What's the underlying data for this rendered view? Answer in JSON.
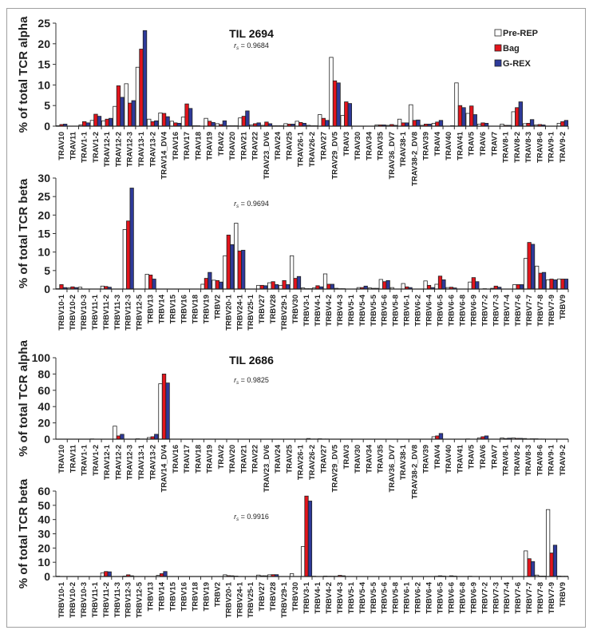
{
  "legend": [
    {
      "name": "Pre-REP",
      "color": "#ffffff"
    },
    {
      "name": "Bag",
      "color": "#e3141c"
    },
    {
      "name": "G-REX",
      "color": "#2e3a9a"
    }
  ],
  "chart_data": [
    {
      "type": "bar",
      "panel": "TIL 2694 alpha",
      "title": "TIL 2694",
      "annotation": "r_s = 0.9684",
      "ylabel": "% of total TCR alpha",
      "ylim": [
        0,
        25
      ],
      "yticks": [
        0,
        5,
        10,
        15,
        20,
        25
      ],
      "legend_position": "top-right",
      "categories": [
        "TRAV10",
        "TRAV11",
        "TRAV1-1",
        "TRAV1-2",
        "TRAV12-1",
        "TRAV12-2",
        "TRAV12-3",
        "TRAV13-1",
        "TRAV13-2",
        "TRAV14_DV4",
        "TRAV16",
        "TRAV17",
        "TRAV18",
        "TRAV19",
        "TRAV2",
        "TRAV20",
        "TRAV21",
        "TRAV22",
        "TRAV23_DV6",
        "TRAV24",
        "TRAV25",
        "TRAV26-1",
        "TRAV26-2",
        "TRAV27",
        "TRAV29_DV5",
        "TRAV3",
        "TRAV30",
        "TRAV34",
        "TRAV35",
        "TRAV36_DV7",
        "TRAV38-1",
        "TRAV38-2_DV8",
        "TRAV39",
        "TRAV4",
        "TRAV40",
        "TRAV41",
        "TRAV5",
        "TRAV6",
        "TRAV7",
        "TRAV8-1",
        "TRAV8-2",
        "TRAV8-3",
        "TRAV8-6",
        "TRAV9-1",
        "TRAV9-2"
      ],
      "series": [
        {
          "name": "Pre-REP",
          "values": [
            0.1,
            0.0,
            0.3,
            1.4,
            1.3,
            4.8,
            10.3,
            14.3,
            1.7,
            3.2,
            1.2,
            2.2,
            0.1,
            1.9,
            0.6,
            0.1,
            2.0,
            0.3,
            0.2,
            0.1,
            0.6,
            1.2,
            0.2,
            2.8,
            16.7,
            2.6,
            0.0,
            0.0,
            0.3,
            0.2,
            1.7,
            5.2,
            0.2,
            0.7,
            0.0,
            10.5,
            3.1,
            0.5,
            0.0,
            0.5,
            3.5,
            0.6,
            0.3,
            0.0,
            0.7
          ]
        },
        {
          "name": "Bag",
          "values": [
            0.4,
            0.0,
            1.1,
            2.9,
            1.7,
            9.8,
            5.6,
            18.7,
            1.1,
            3.1,
            0.8,
            5.4,
            0.1,
            1.2,
            0.4,
            0.1,
            2.4,
            0.6,
            1.0,
            0.1,
            0.5,
            0.9,
            0.1,
            1.9,
            11.0,
            5.9,
            0.0,
            0.0,
            0.3,
            0.4,
            0.8,
            1.4,
            0.5,
            1.0,
            0.0,
            5.0,
            4.9,
            0.8,
            0.0,
            0.2,
            4.5,
            0.7,
            0.4,
            0.0,
            1.1
          ]
        },
        {
          "name": "G-REX",
          "values": [
            0.5,
            0.0,
            0.8,
            2.4,
            1.9,
            7.0,
            6.2,
            23.2,
            1.3,
            2.3,
            0.7,
            4.3,
            0.0,
            0.9,
            1.3,
            0.1,
            3.7,
            0.8,
            0.6,
            0.1,
            0.5,
            0.7,
            0.1,
            1.4,
            10.5,
            5.5,
            0.0,
            0.0,
            0.3,
            0.2,
            0.8,
            1.5,
            0.5,
            1.4,
            0.1,
            4.5,
            2.8,
            0.7,
            0.0,
            0.2,
            5.9,
            1.6,
            0.3,
            0.0,
            1.4
          ]
        }
      ]
    },
    {
      "type": "bar",
      "panel": "TIL 2694 beta",
      "title": "",
      "annotation": "r_s = 0.9694",
      "ylabel": "% of total TCR beta",
      "ylim": [
        0,
        30
      ],
      "yticks": [
        0,
        5,
        10,
        15,
        20,
        25,
        30
      ],
      "categories": [
        "TRBV10-1",
        "TRBV10-2",
        "TRBV10-3",
        "TRBV11-1",
        "TRBV11-2",
        "TRBV11-3",
        "TRBV12-3",
        "TRBV12-5",
        "TRBV13",
        "TRBV14",
        "TRBV15",
        "TRBV16",
        "TRBV18",
        "TRBV19",
        "TRBV2",
        "TRBV20-1",
        "TRBV24-1",
        "TRBV25-1",
        "TRBV27",
        "TRBV28",
        "TRBV29-1",
        "TRBV30",
        "TRBV3-1",
        "TRBV4-1",
        "TRBV4-2",
        "TRBV4-3",
        "TRBV5-1",
        "TRBV5-4",
        "TRBV5-5",
        "TRBV5-6",
        "TRBV5-8",
        "TRBV6-1",
        "TRBV6-2",
        "TRBV6-4",
        "TRBV6-5",
        "TRBV6-6",
        "TRBV6-8",
        "TRBV6-9",
        "TRBV7-2",
        "TRBV7-3",
        "TRBV7-4",
        "TRBV7-6",
        "TRBV7-7",
        "TRBV7-8",
        "TRBV7-9",
        "TRBV9"
      ],
      "series": [
        {
          "name": "Pre-REP",
          "values": [
            0.1,
            0.3,
            0.5,
            0.0,
            0.8,
            0.0,
            16.1,
            0.0,
            4.0,
            0.0,
            0.0,
            0.0,
            0.0,
            1.3,
            2.4,
            9.0,
            17.8,
            0.0,
            1.0,
            1.7,
            1.0,
            9.0,
            0.3,
            0.3,
            4.1,
            0.2,
            0.0,
            0.4,
            0.3,
            2.6,
            0.4,
            1.5,
            0.0,
            2.2,
            1.3,
            0.4,
            0.0,
            1.9,
            0.0,
            0.2,
            0.0,
            1.2,
            8.3,
            6.2,
            2.5,
            2.7
          ]
        },
        {
          "name": "Bag",
          "values": [
            1.2,
            0.6,
            0.0,
            0.0,
            0.7,
            0.0,
            18.4,
            0.0,
            3.8,
            0.0,
            0.0,
            0.0,
            0.0,
            2.9,
            2.3,
            14.6,
            10.3,
            0.0,
            1.0,
            2.0,
            2.3,
            2.9,
            0.1,
            0.9,
            1.3,
            0.1,
            0.0,
            0.4,
            0.2,
            2.0,
            0.0,
            0.6,
            0.0,
            1.0,
            3.5,
            0.5,
            0.0,
            3.1,
            0.1,
            0.8,
            0.0,
            1.2,
            12.6,
            4.3,
            2.7,
            2.7
          ]
        },
        {
          "name": "G-REX",
          "values": [
            0.4,
            0.4,
            0.0,
            0.0,
            0.5,
            0.0,
            27.3,
            0.0,
            2.7,
            0.0,
            0.0,
            0.0,
            0.0,
            4.5,
            1.9,
            12.0,
            10.5,
            0.0,
            0.9,
            1.2,
            1.2,
            3.4,
            0.1,
            0.6,
            1.3,
            0.1,
            0.0,
            0.8,
            0.2,
            2.3,
            0.0,
            0.4,
            0.0,
            0.4,
            2.5,
            0.3,
            0.0,
            2.0,
            0.0,
            0.5,
            0.0,
            1.2,
            12.1,
            4.5,
            2.5,
            2.7
          ]
        }
      ]
    },
    {
      "type": "bar",
      "panel": "TIL 2686 alpha",
      "title": "TIL 2686",
      "annotation": "r_s = 0.9825",
      "ylabel": "% of total TCR alpha",
      "ylim": [
        0,
        100
      ],
      "yticks": [
        0,
        20,
        40,
        60,
        80,
        100
      ],
      "categories": [
        "TRAV10",
        "TRAV11",
        "TRAV1-1",
        "TRAV1-2",
        "TRAV12-1",
        "TRAV12-2",
        "TRAV12-3",
        "TRAV13-1",
        "TRAV13-2",
        "TRAV14_DV4",
        "TRAV16",
        "TRAV17",
        "TRAV18",
        "TRAV19",
        "TRAV2",
        "TRAV20",
        "TRAV21",
        "TRAV22",
        "TRAV23_DV6",
        "TRAV24",
        "TRAV25",
        "TRAV26-1",
        "TRAV26-2",
        "TRAV27",
        "TRAV29_DV5",
        "TRAV3",
        "TRAV30",
        "TRAV34",
        "TRAV35",
        "TRAV36_DV7",
        "TRAV38-1",
        "TRAV38-2_DV8",
        "TRAV39",
        "TRAV4",
        "TRAV40",
        "TRAV41",
        "TRAV5",
        "TRAV6",
        "TRAV7",
        "TRAV8-1",
        "TRAV8-2",
        "TRAV8-3",
        "TRAV8-6",
        "TRAV9-1",
        "TRAV9-2"
      ],
      "series": [
        {
          "name": "Pre-REP",
          "values": [
            0,
            0,
            0,
            0.3,
            0,
            16.0,
            0,
            0.5,
            2.0,
            68.0,
            0,
            0,
            0,
            0,
            0,
            0,
            0,
            0,
            0,
            0,
            0,
            0,
            0.8,
            0.5,
            0,
            0,
            0,
            0,
            0,
            0,
            0,
            0,
            0,
            3.0,
            0,
            0,
            0.3,
            1.5,
            0,
            1.5,
            1.5,
            0.8,
            0.5,
            0,
            0
          ]
        },
        {
          "name": "Bag",
          "values": [
            0,
            0,
            0,
            0,
            0,
            4.0,
            0,
            0.2,
            3.0,
            80.0,
            0,
            0,
            0,
            0,
            0,
            0,
            0,
            0,
            0,
            0,
            0,
            0,
            0.2,
            0.2,
            0,
            0,
            0,
            0,
            0,
            0,
            0,
            0,
            0,
            4.0,
            0,
            0,
            0,
            3.0,
            0,
            0.8,
            1.0,
            0.3,
            0.2,
            0,
            0
          ]
        },
        {
          "name": "G-REX",
          "values": [
            0,
            0,
            0,
            0,
            0,
            6.0,
            0,
            0.2,
            6.0,
            69.0,
            0,
            0,
            0,
            0,
            0,
            0,
            0,
            0,
            0,
            0,
            0,
            0,
            0.2,
            0.2,
            0,
            0,
            0,
            0,
            0,
            0,
            0,
            0,
            0,
            7.0,
            0,
            0,
            0,
            4.0,
            0,
            1.2,
            1.0,
            0.5,
            0.2,
            0,
            0
          ]
        }
      ]
    },
    {
      "type": "bar",
      "panel": "TIL 2686 beta",
      "title": "",
      "annotation": "r_s = 0.9916",
      "ylabel": "% of total TCR beta",
      "ylim": [
        0,
        60
      ],
      "yticks": [
        0,
        10,
        20,
        30,
        40,
        50,
        60
      ],
      "categories": [
        "TRBV10-1",
        "TRBV10-2",
        "TRBV10-3",
        "TRBV11-1",
        "TRBV11-2",
        "TRBV11-3",
        "TRBV12-3",
        "TRBV12-5",
        "TRBV13",
        "TRBV14",
        "TRBV15",
        "TRBV16",
        "TRBV18",
        "TRBV19",
        "TRBV2",
        "TRBV20-1",
        "TRBV24-1",
        "TRBV25-1",
        "TRBV27",
        "TRBV28",
        "TRBV29-1",
        "TRBV30",
        "TRBV3-1",
        "TRBV4-1",
        "TRBV4-2",
        "TRBV4-3",
        "TRBV5-1",
        "TRBV5-4",
        "TRBV5-5",
        "TRBV5-6",
        "TRBV5-8",
        "TRBV6-1",
        "TRBV6-2",
        "TRBV6-4",
        "TRBV6-5",
        "TRBV6-6",
        "TRBV6-8",
        "TRBV6-9",
        "TRBV7-2",
        "TRBV7-3",
        "TRBV7-4",
        "TRBV7-6",
        "TRBV7-7",
        "TRBV7-8",
        "TRBV7-9",
        "TRBV9"
      ],
      "series": [
        {
          "name": "Pre-REP",
          "values": [
            0.2,
            0,
            0,
            0,
            2.5,
            0,
            0.3,
            0,
            0,
            0.8,
            0,
            0,
            0,
            0,
            0,
            1.2,
            0.3,
            0,
            1.0,
            1.2,
            0,
            2.0,
            21.0,
            0.2,
            0.3,
            0.2,
            0,
            0,
            0,
            0,
            0,
            0,
            0,
            0,
            0.2,
            0,
            0,
            0.2,
            0,
            0,
            0,
            0,
            18.0,
            1.0,
            47.0,
            0.3
          ]
        },
        {
          "name": "Bag",
          "values": [
            0,
            0,
            0,
            0,
            3.5,
            0,
            1.2,
            0,
            0,
            2.0,
            0,
            0,
            0,
            0,
            0,
            0.6,
            0,
            0,
            0.5,
            1.3,
            0,
            0,
            56.5,
            0,
            0.2,
            0.8,
            0,
            0,
            0,
            0,
            0,
            0,
            0,
            0,
            0.5,
            0.5,
            0,
            0,
            0,
            0,
            0,
            0,
            12.5,
            0.3,
            16.5,
            0.2
          ]
        },
        {
          "name": "G-REX",
          "values": [
            0,
            0,
            0,
            0,
            3.3,
            0,
            0.5,
            0,
            0,
            3.5,
            0,
            0,
            0,
            0,
            0,
            0.5,
            0,
            0,
            0.5,
            1.3,
            0,
            0,
            53.0,
            0,
            0.2,
            0.5,
            0,
            0,
            0,
            0,
            0,
            0,
            0,
            0,
            0.3,
            0.3,
            0,
            0,
            0,
            0,
            0,
            0,
            10.5,
            0.3,
            22.0,
            0.2
          ]
        }
      ]
    }
  ]
}
